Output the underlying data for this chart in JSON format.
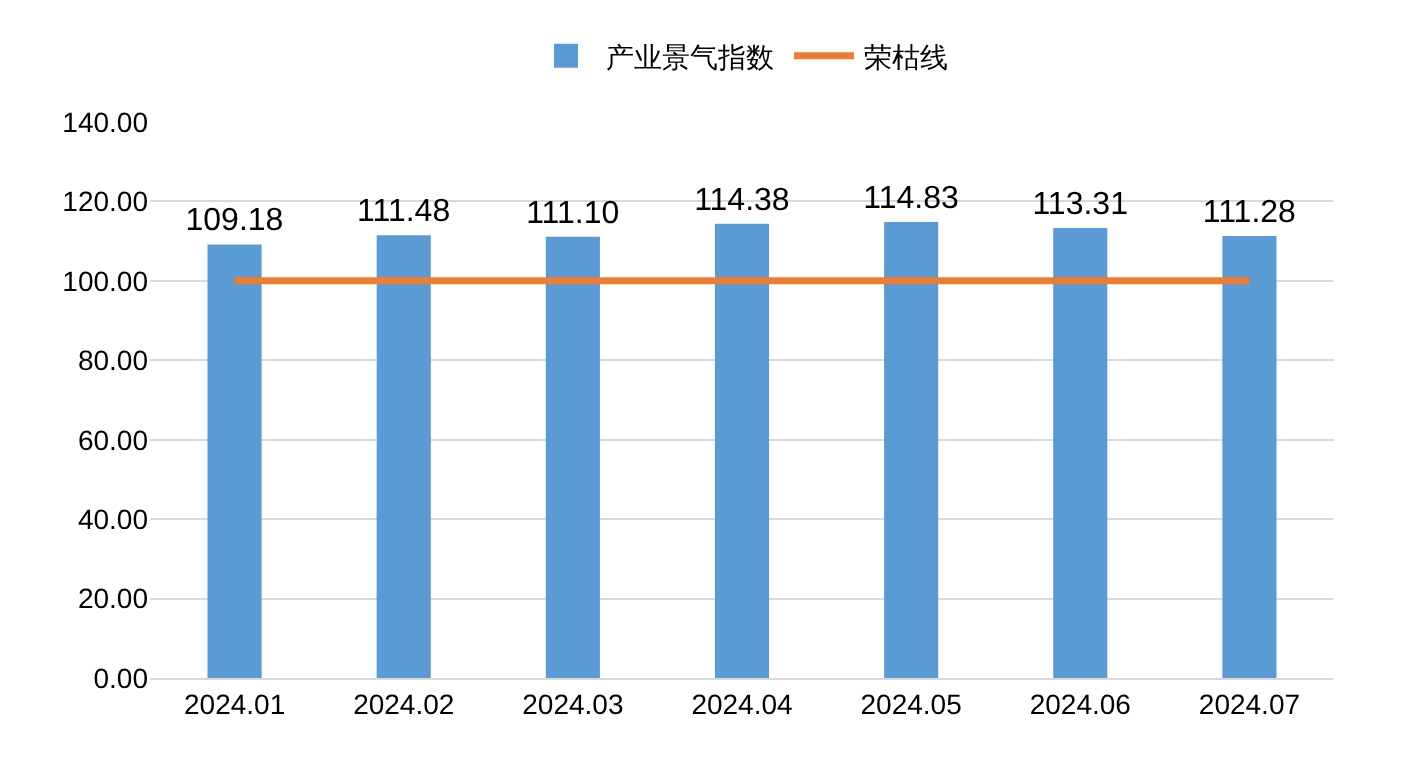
{
  "chart_data": {
    "type": "bar",
    "categories": [
      "2024.01",
      "2024.02",
      "2024.03",
      "2024.04",
      "2024.05",
      "2024.06",
      "2024.07"
    ],
    "series": [
      {
        "name": "产业景气指数",
        "color": "#5b9bd5",
        "values": [
          109.18,
          111.48,
          111.1,
          114.38,
          114.83,
          113.31,
          111.28
        ],
        "value_labels": [
          "109.18",
          "111.48",
          "111.10",
          "114.38",
          "114.83",
          "113.31",
          "111.28"
        ]
      },
      {
        "name": "荣枯线",
        "type": "line",
        "color": "#ed7d31",
        "values": [
          100,
          100,
          100,
          100,
          100,
          100,
          100
        ]
      }
    ],
    "ylim": [
      0,
      140
    ],
    "yticks": [
      {
        "value": 0,
        "label": "0.00"
      },
      {
        "value": 20,
        "label": "20.00"
      },
      {
        "value": 40,
        "label": "40.00"
      },
      {
        "value": 60,
        "label": "60.00"
      },
      {
        "value": 80,
        "label": "80.00"
      },
      {
        "value": 100,
        "label": "100.00"
      },
      {
        "value": 120,
        "label": "120.00"
      },
      {
        "value": 140,
        "label": "140.00"
      }
    ],
    "grid": "y",
    "legend": "top",
    "line_style": "solid",
    "marker": "none"
  }
}
